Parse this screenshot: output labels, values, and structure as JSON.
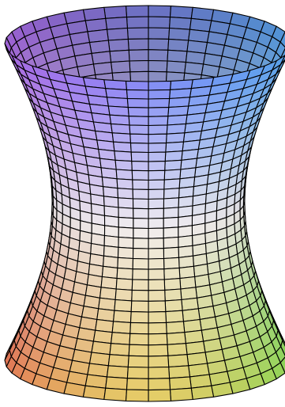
{
  "figure": {
    "icon": "hyperboloid-surface-icon",
    "shape": "hyperboloid of one sheet",
    "background": "#ffffff",
    "line_color": "#000000",
    "mesh": {
      "angular_segments": 40,
      "height_segments": 32
    },
    "colors": {
      "top_left": "#b06cf0",
      "top_right": "#59aaf8",
      "neck": "#f2eef0",
      "bottom_left": "#f47a58",
      "bottom_right": "#8ce658",
      "bottom_front": "#f6d86a"
    }
  }
}
